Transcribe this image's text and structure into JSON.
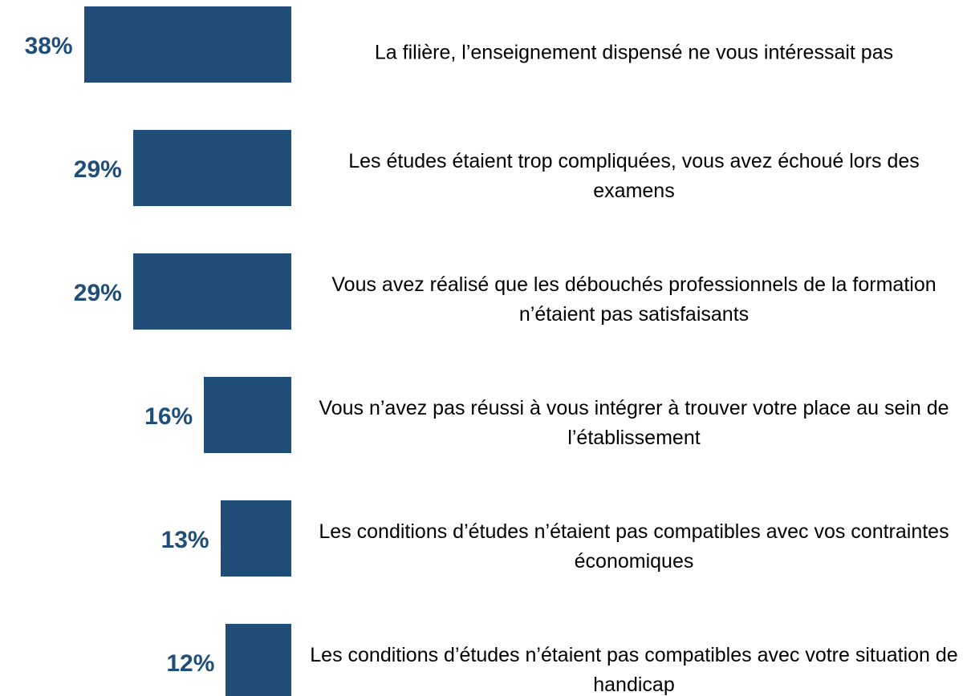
{
  "chart_data": {
    "type": "bar",
    "categories": [
      "La filière, l’enseignement dispensé ne vous intéressait pas",
      "Les études étaient trop compliquées, vous avez échoué lors des examens",
      "Vous avez réalisé que les débouchés professionnels de la formation n’étaient pas satisfaisants",
      "Vous n’avez pas réussi à vous intégrer à trouver votre place au sein de l’établissement",
      "Les conditions d’études n’étaient pas compatibles avec vos contraintes économiques",
      "Les conditions d’études n’étaient pas compatibles avec votre situation de handicap"
    ],
    "values": [
      38,
      29,
      29,
      16,
      13,
      12
    ],
    "value_labels": [
      "38%",
      "29%",
      "29%",
      "16%",
      "13%",
      "12%"
    ],
    "color": "#204e78"
  }
}
